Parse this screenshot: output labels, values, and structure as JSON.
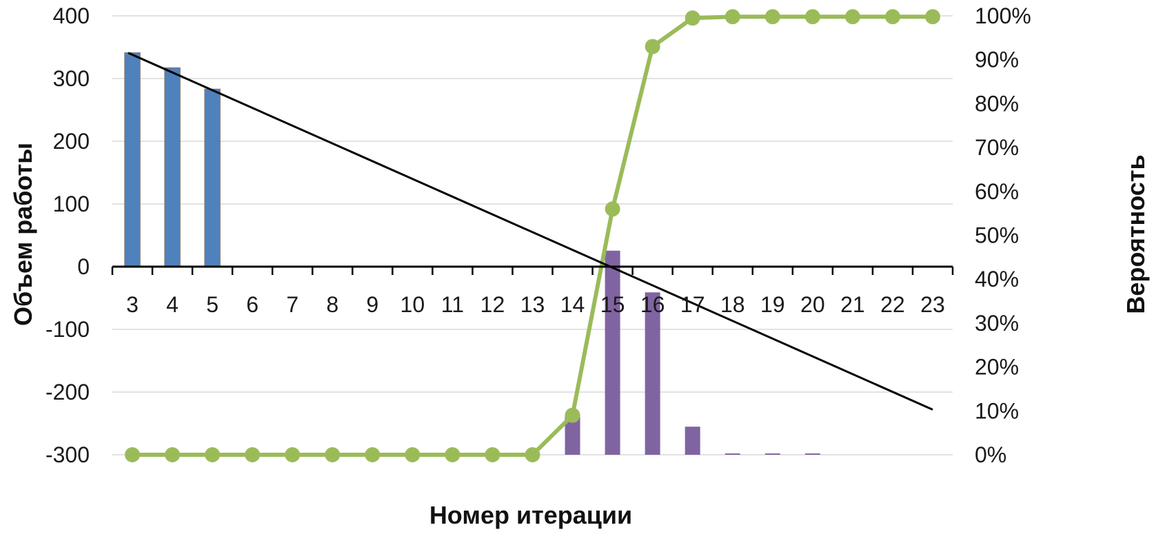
{
  "chart_data": {
    "type": "bar",
    "xlabel": "Номер итерации",
    "ylabel": "Объем работы",
    "y2label": "Вероятность",
    "x": [
      3,
      4,
      5,
      6,
      7,
      8,
      9,
      10,
      11,
      12,
      13,
      14,
      15,
      16,
      17,
      18,
      19,
      20,
      21,
      22,
      23
    ],
    "ylim": [
      -300,
      400
    ],
    "yticks": [
      400,
      300,
      200,
      100,
      0,
      -100,
      -200,
      -300
    ],
    "y2lim": [
      0,
      1
    ],
    "y2ticks": [
      "100%",
      "90%",
      "80%",
      "70%",
      "60%",
      "50%",
      "40%",
      "30%",
      "20%",
      "10%",
      "0%"
    ],
    "grid": true,
    "series": [
      {
        "kind": "bar",
        "axis": "left",
        "color": "#4f81bd",
        "x": [
          3,
          4,
          5
        ],
        "values": [
          341,
          317,
          283
        ]
      },
      {
        "kind": "bar",
        "axis": "right",
        "color": "#8064a2",
        "x": [
          14,
          15,
          16,
          17,
          18,
          19,
          20
        ],
        "values": [
          0.093,
          0.465,
          0.37,
          0.064,
          0.003,
          0.003,
          0.003
        ]
      },
      {
        "kind": "line",
        "axis": "right",
        "color": "#9bbb59",
        "markers": true,
        "x": [
          3,
          4,
          5,
          6,
          7,
          8,
          9,
          10,
          11,
          12,
          13,
          14,
          15,
          16,
          17,
          18,
          19,
          20,
          21,
          22,
          23
        ],
        "values": [
          0,
          0,
          0,
          0,
          0,
          0,
          0,
          0,
          0,
          0,
          0,
          0.09,
          0.56,
          0.93,
          0.995,
          0.998,
          0.998,
          0.998,
          0.998,
          0.998,
          0.998
        ]
      },
      {
        "kind": "line",
        "axis": "left",
        "color": "#000000",
        "markers": false,
        "x": [
          3,
          23
        ],
        "values": [
          341,
          -228
        ]
      }
    ]
  }
}
